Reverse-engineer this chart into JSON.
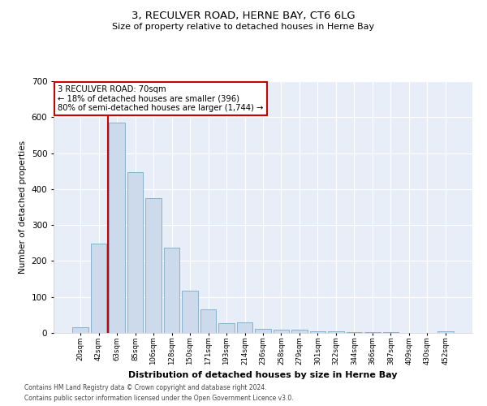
{
  "title": "3, RECULVER ROAD, HERNE BAY, CT6 6LG",
  "subtitle": "Size of property relative to detached houses in Herne Bay",
  "xlabel": "Distribution of detached houses by size in Herne Bay",
  "ylabel": "Number of detached properties",
  "categories": [
    "20sqm",
    "42sqm",
    "63sqm",
    "85sqm",
    "106sqm",
    "128sqm",
    "150sqm",
    "171sqm",
    "193sqm",
    "214sqm",
    "236sqm",
    "258sqm",
    "279sqm",
    "301sqm",
    "322sqm",
    "344sqm",
    "366sqm",
    "387sqm",
    "409sqm",
    "430sqm",
    "452sqm"
  ],
  "bar_values": [
    15,
    248,
    585,
    448,
    375,
    238,
    118,
    65,
    28,
    30,
    12,
    9,
    8,
    5,
    4,
    3,
    2,
    2,
    1,
    1,
    5
  ],
  "bar_color": "#ccdaeb",
  "bar_edge_color": "#7aaac8",
  "red_line_x": 1.5,
  "property_label": "3 RECULVER ROAD: 70sqm",
  "annotation_line1": "← 18% of detached houses are smaller (396)",
  "annotation_line2": "80% of semi-detached houses are larger (1,744) →",
  "annotation_box_color": "#ffffff",
  "annotation_box_edge": "#cc0000",
  "ylim": [
    0,
    700
  ],
  "yticks": [
    0,
    100,
    200,
    300,
    400,
    500,
    600,
    700
  ],
  "footer1": "Contains HM Land Registry data © Crown copyright and database right 2024.",
  "footer2": "Contains public sector information licensed under the Open Government Licence v3.0.",
  "plot_background": "#e8eef8"
}
